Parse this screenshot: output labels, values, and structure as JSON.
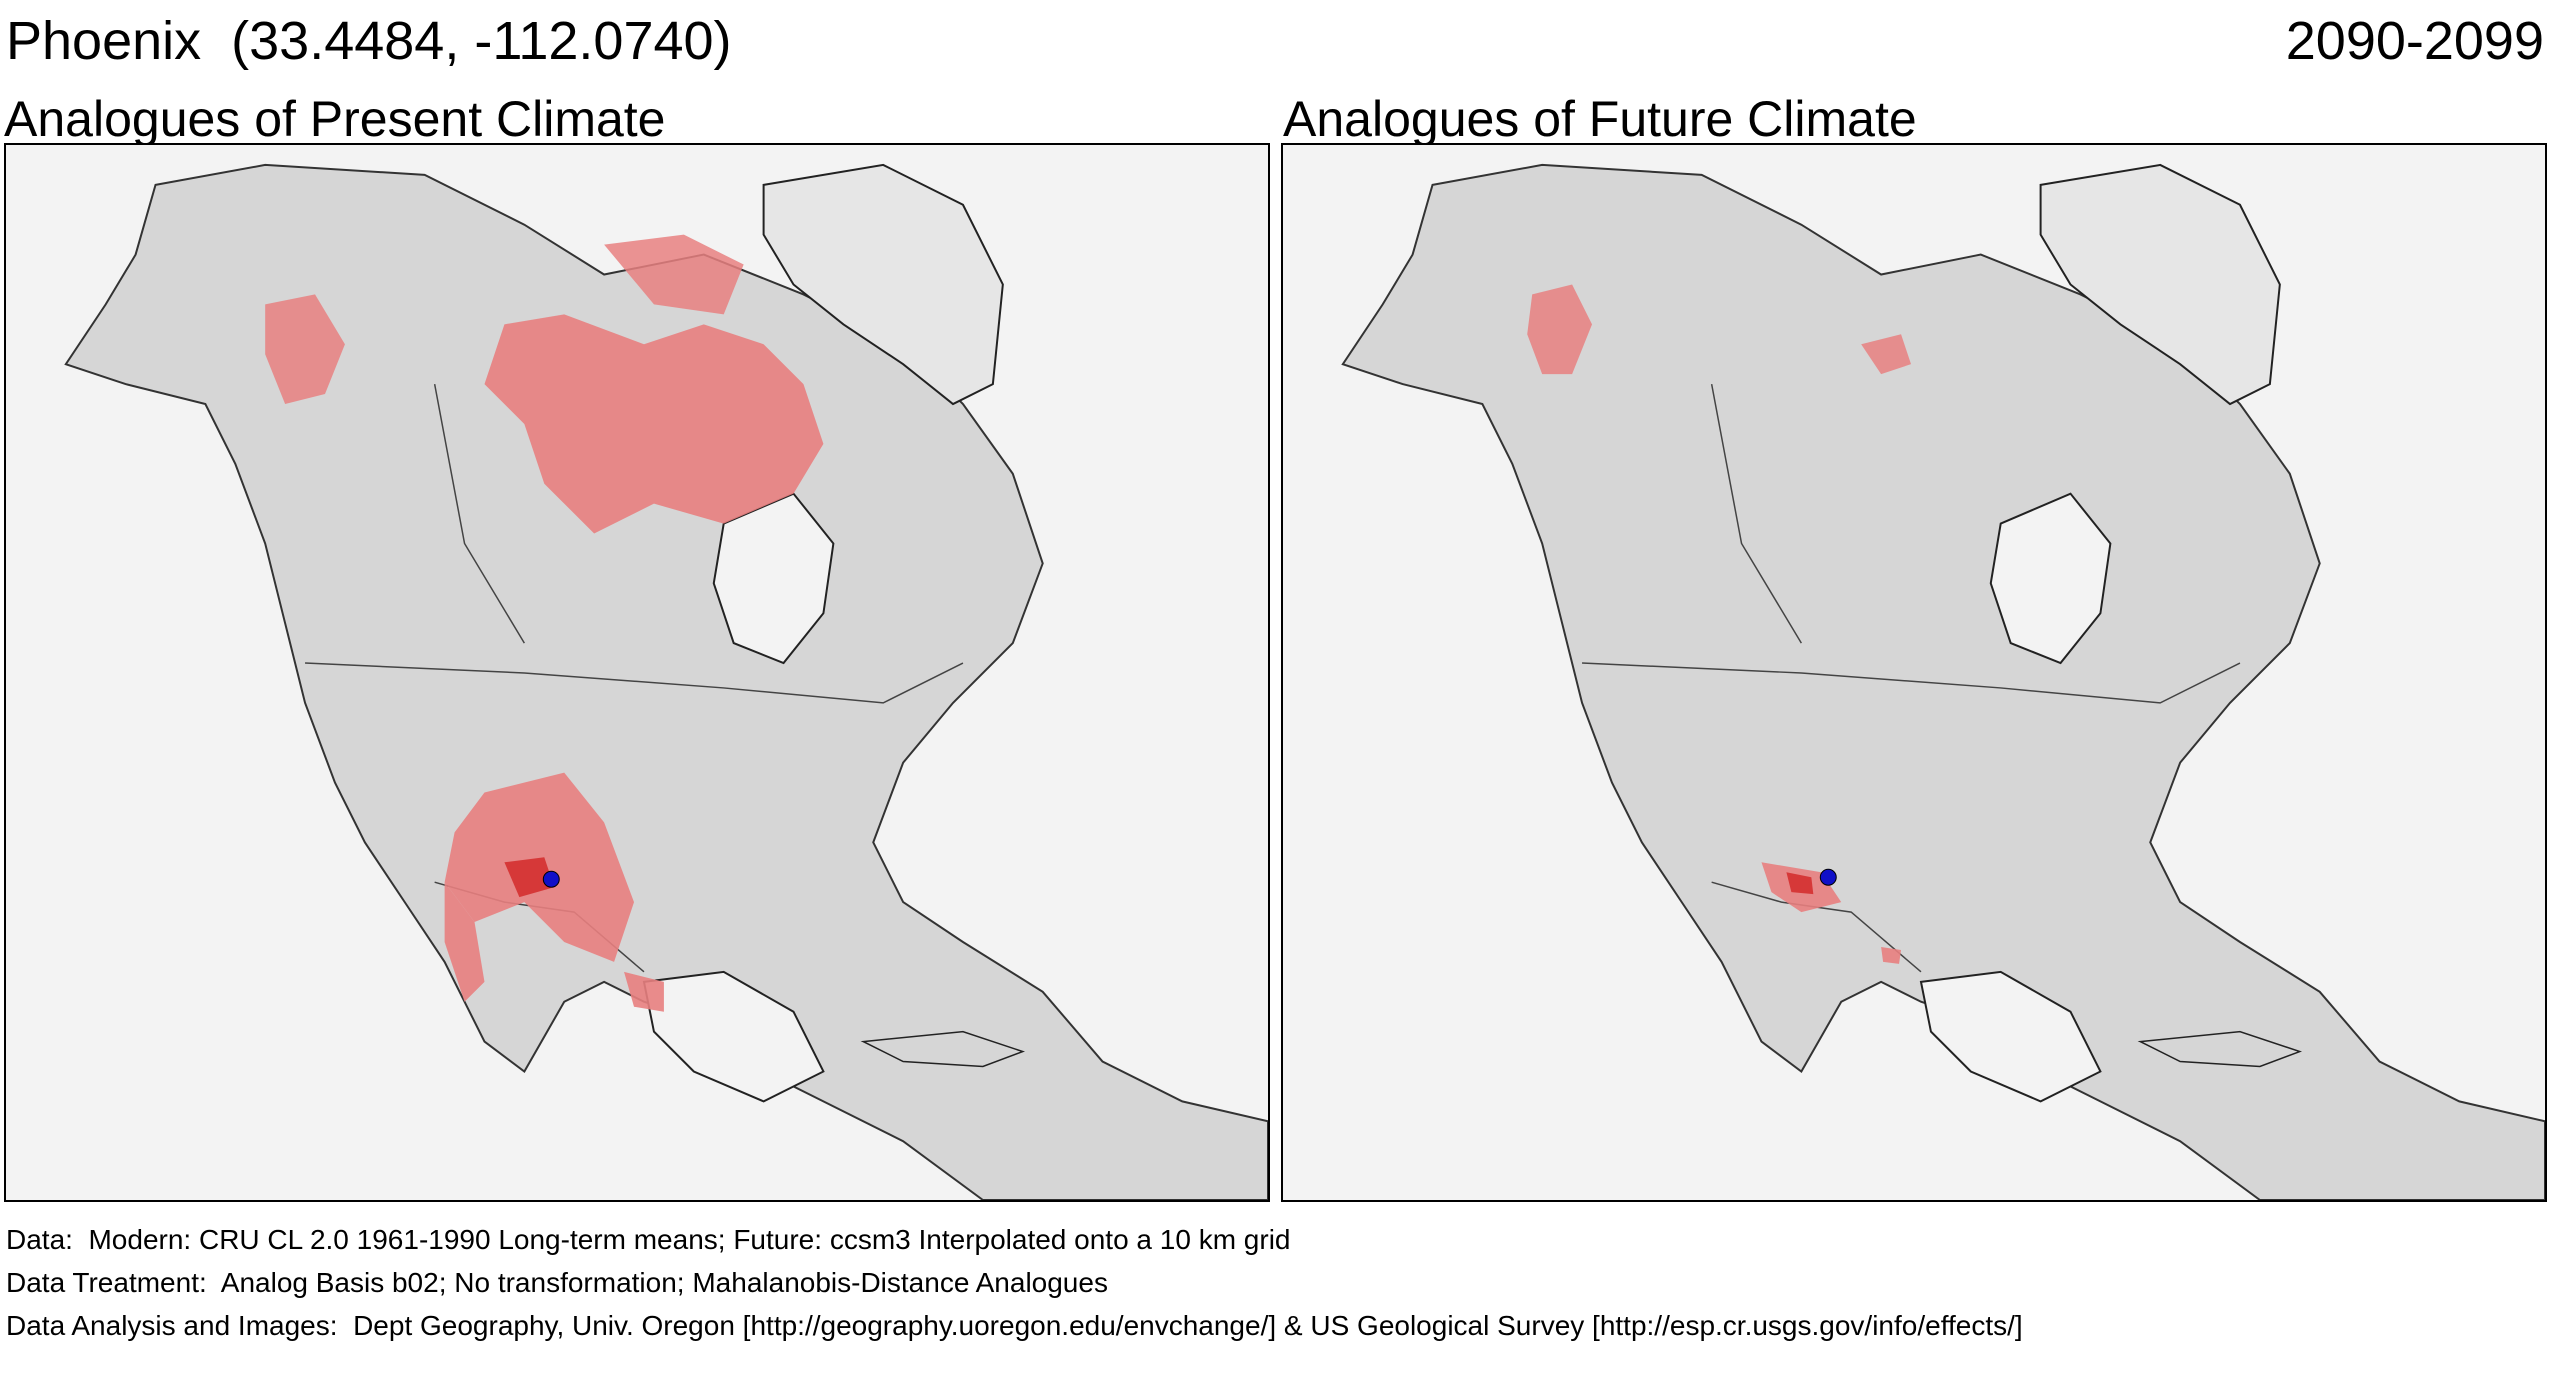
{
  "header": {
    "location": "Phoenix  (33.4484, -112.0740)",
    "period": "2090-2099"
  },
  "panels": [
    {
      "title": "Analogues of Present Climate"
    },
    {
      "title": "Analogues of Future Climate"
    }
  ],
  "footer": {
    "line1": "Data:  Modern: CRU CL 2.0 1961-1990 Long-term means; Future: ccsm3 Interpolated onto a 10 km grid",
    "line2": "Data Treatment:  Analog Basis b02; No transformation; Mahalanobis-Distance Analogues",
    "line3": "Data Analysis and Images:  Dept Geography, Univ. Oregon [http://geography.uoregon.edu/envchange/] & US Geological Survey [http://esp.cr.usgs.gov/info/effects/]"
  },
  "colors": {
    "ocean": "#f3f3f3",
    "land": "#d6d6d6",
    "analogue": "#e88080",
    "analogue_strong": "#d43030",
    "site_marker": "#1010c8"
  }
}
